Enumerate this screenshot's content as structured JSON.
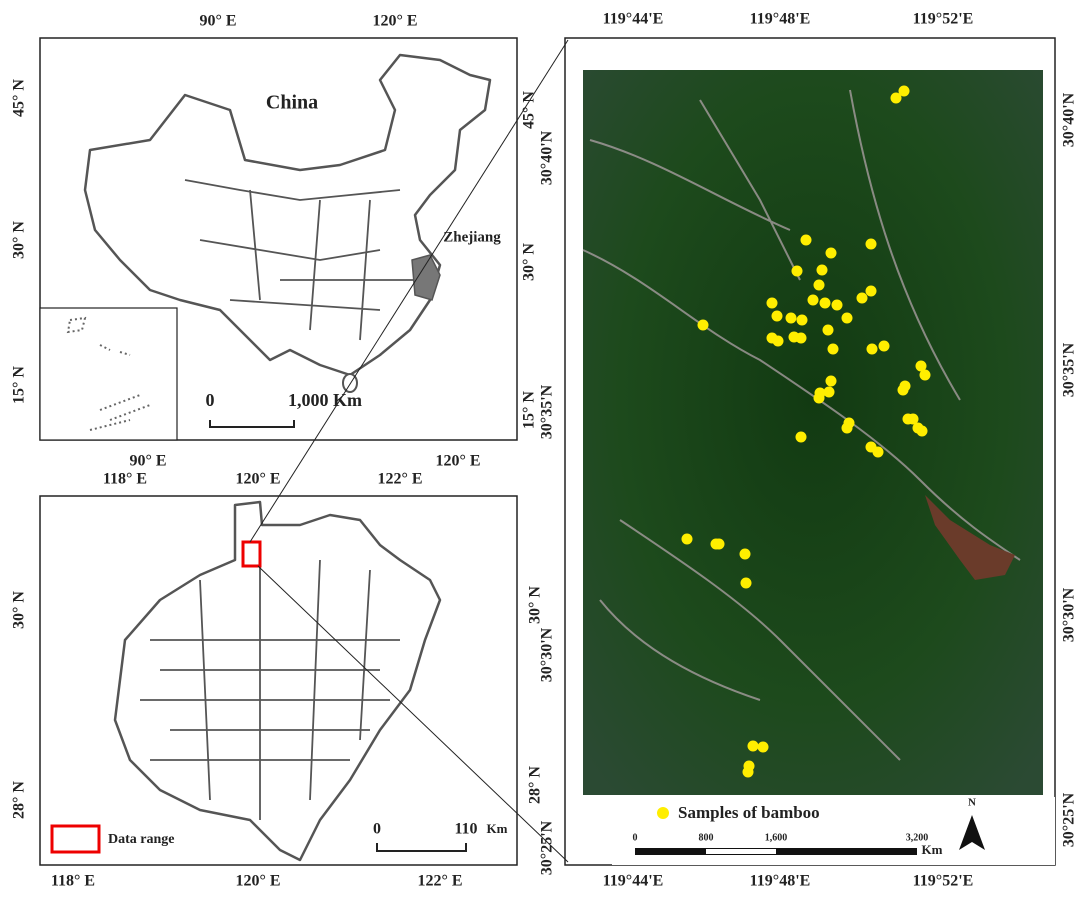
{
  "china_map": {
    "title": "China",
    "province_label": "Zhejiang",
    "top_ticks": [
      "90° E",
      "120° E"
    ],
    "bottom_ticks": [
      "90° E",
      "120° E"
    ],
    "left_ticks": [
      "45° N",
      "30° N",
      "15° N"
    ],
    "right_ticks": [
      "45° N",
      "30° N",
      "15° N"
    ],
    "scale_labels": [
      "0",
      "1,000 Km"
    ]
  },
  "zhejiang_map": {
    "top_ticks": [
      "118° E",
      "120° E",
      "122° E"
    ],
    "bottom_ticks": [
      "118° E",
      "120° E",
      "122° E"
    ],
    "left_ticks": [
      "30° N",
      "28° N"
    ],
    "right_ticks": [
      "30° N",
      "28° N"
    ],
    "legend": "Data range",
    "scale_labels": [
      "0",
      "110",
      "Km"
    ]
  },
  "study_area": {
    "top_ticks": [
      "119°44'E",
      "119°48'E",
      "119°52'E"
    ],
    "bottom_ticks": [
      "119°44'E",
      "119°48'E",
      "119°52'E"
    ],
    "left_ticks": [
      "30°40'N",
      "30°35'N",
      "30°30'N",
      "30°25'N"
    ],
    "right_ticks": [
      "30°40'N",
      "30°35'N",
      "30°30'N",
      "30°25'N"
    ],
    "legend": "Samples of bamboo",
    "scale_labels": [
      "0",
      "800",
      "1,600",
      "3,200",
      "Km"
    ],
    "north": "N"
  }
}
